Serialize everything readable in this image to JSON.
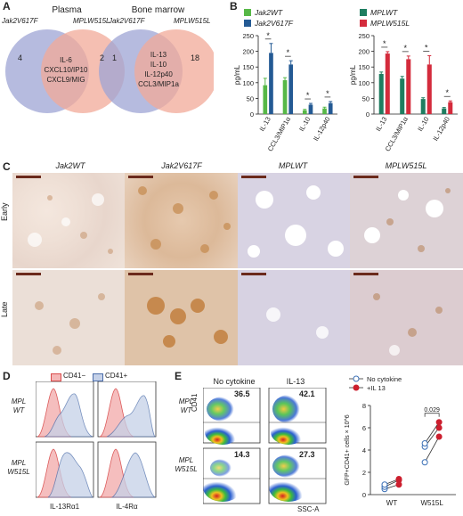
{
  "panel_labels": {
    "a": "A",
    "b": "B",
    "c": "C",
    "d": "D",
    "e": "E"
  },
  "panelA": {
    "venn1": {
      "title": "Plasma",
      "left": "Jak2V617F",
      "right": "MPLW515L",
      "left_only": "4",
      "right_only": "2",
      "shared": [
        "IL-6",
        "CXCL10/IP10",
        "CXCL9/MIG"
      ]
    },
    "venn2": {
      "title": "Bone marrow",
      "left": "Jak2V617F",
      "right": "MPLW515L",
      "left_only": "1",
      "right_only": "18",
      "shared": [
        "IL-13",
        "IL-10",
        "IL-12p40",
        "CCL3/MIP1a"
      ]
    },
    "colors": {
      "left": "#9ea4d4",
      "right": "#f2aa98",
      "overlap": "#a08a8a"
    }
  },
  "chart_data": [
    {
      "type": "bar",
      "ylabel": "pg/mL",
      "ylim": [
        0,
        250
      ],
      "yticks": [
        "0",
        "50",
        "100",
        "150",
        "200",
        "250"
      ],
      "categories": [
        "IL-13",
        "CCL3/MIP1α",
        "IL-10",
        "IL-12p40"
      ],
      "series": [
        {
          "name": "Jak2WT",
          "color": "#57b847",
          "values": [
            92,
            108,
            12,
            18
          ],
          "err": [
            22,
            8,
            3,
            4
          ]
        },
        {
          "name": "Jak2V617F",
          "color": "#245a94",
          "values": [
            195,
            158,
            30,
            35
          ],
          "err": [
            30,
            12,
            4,
            5
          ]
        }
      ],
      "significance": "*"
    },
    {
      "type": "bar",
      "ylabel": "pg/mL",
      "ylim": [
        0,
        250
      ],
      "yticks": [
        "0",
        "50",
        "100",
        "150",
        "200",
        "250"
      ],
      "categories": [
        "IL-13",
        "CCL3/MIP1α",
        "IL-10",
        "IL-12p40"
      ],
      "series": [
        {
          "name": "MPLWT",
          "color": "#1e7d60",
          "values": [
            128,
            113,
            48,
            18
          ],
          "err": [
            6,
            7,
            4,
            3
          ]
        },
        {
          "name": "MPLW515L",
          "color": "#d42b3c",
          "values": [
            193,
            175,
            158,
            38
          ],
          "err": [
            6,
            10,
            28,
            4
          ]
        }
      ],
      "significance": "*"
    },
    {
      "type": "scatter",
      "ylabel": "GFP+CD41+ cells × 10^6",
      "ylim": [
        0,
        8
      ],
      "yticks": [
        "0",
        "2",
        "4",
        "6",
        "8"
      ],
      "categories": [
        "WT",
        "W515L"
      ],
      "legend": [
        {
          "name": "No cytokine",
          "color": "#3a6fb5"
        },
        {
          "name": "+IL 13",
          "color": "#cc1f2e"
        }
      ],
      "pvalue": "0.029",
      "pairs": {
        "WT": [
          [
            0.5,
            0.9
          ],
          [
            0.7,
            1.3
          ],
          [
            0.9,
            1.4
          ]
        ],
        "W515L": [
          [
            2.9,
            5.2
          ],
          [
            4.3,
            6.0
          ],
          [
            4.6,
            6.5
          ]
        ]
      }
    }
  ],
  "panelC": {
    "columns": [
      "Jak2WT",
      "Jak2V617F",
      "MPLWT",
      "MPLW515L"
    ],
    "rows": [
      "Early",
      "Late"
    ]
  },
  "panelD": {
    "legend": [
      "CD41−",
      "CD41+"
    ],
    "rows": [
      {
        "l1": "MPL",
        "l2": "WT"
      },
      {
        "l1": "MPL",
        "l2": "W515L"
      }
    ],
    "xlabels": [
      "IL-13Rα1",
      "IL-4Rα"
    ],
    "colors": {
      "neg": "#e88a8a",
      "pos": "#8fa6cf"
    }
  },
  "panelE": {
    "cols": [
      "No cytokine",
      "IL-13"
    ],
    "rows": [
      {
        "l1": "MPL",
        "l2": "WT"
      },
      {
        "l1": "MPL",
        "l2": "W515L"
      }
    ],
    "values": [
      [
        "36.5",
        "42.1"
      ],
      [
        "14.3",
        "27.3"
      ]
    ],
    "ylabel": "CD41",
    "xlabel": "SSC-A"
  }
}
